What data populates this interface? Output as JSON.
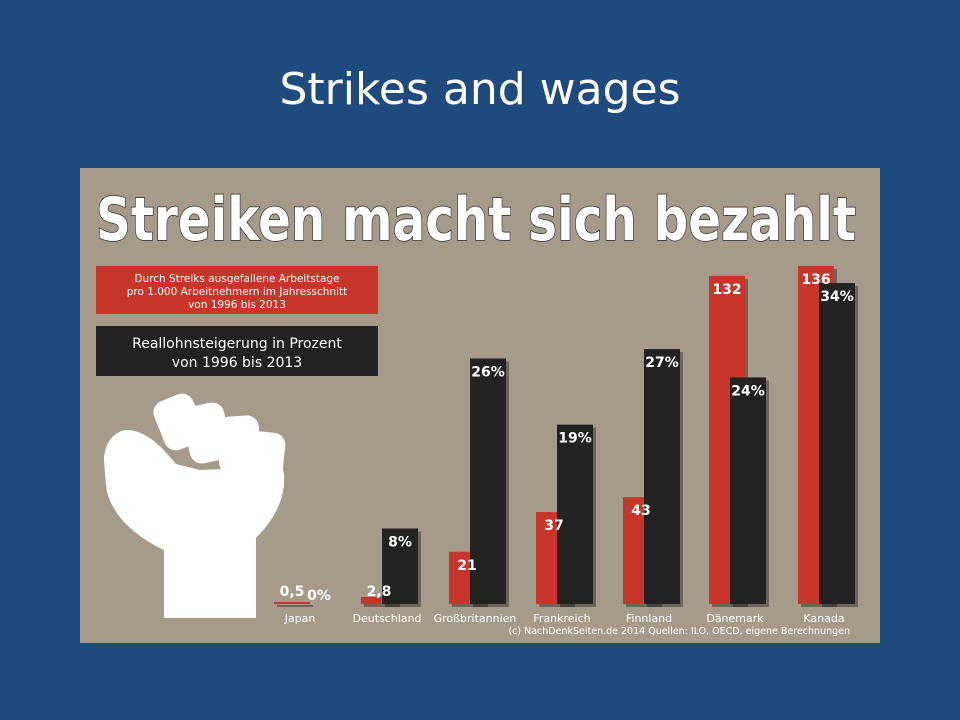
{
  "slide": {
    "title": "Strikes and wages"
  },
  "chart_data": {
    "type": "bar",
    "title": "Streiken macht sich bezahlt",
    "categories": [
      "Japan",
      "Deutschland",
      "Großbritannien",
      "Frankreich",
      "Finnland",
      "Dänemark",
      "Kanada"
    ],
    "series": [
      {
        "name": "Durch Streiks ausgefallene Arbeitstage pro 1.000 Arbeitnehmern im Jahresschnitt von 1996 bis 2013",
        "legend_lines": [
          "Durch Streiks ausgefallene Arbeitstage",
          "pro 1.000 Arbeitnehmern im Jahresschnitt",
          "von 1996 bis 2013"
        ],
        "values": [
          0.5,
          2.8,
          21,
          37,
          43,
          132,
          136
        ],
        "labels": [
          "0,5",
          "2,8",
          "21",
          "37",
          "43",
          "132",
          "136"
        ],
        "color": "#c8352a"
      },
      {
        "name": "Reallohnsteigerung in Prozent von 1996 bis 2013",
        "legend_lines": [
          "Reallohnsteigerung in Prozent",
          "von 1996 bis 2013"
        ],
        "values": [
          0,
          8,
          26,
          19,
          27,
          24,
          34
        ],
        "labels": [
          "0%",
          "8%",
          "26%",
          "19%",
          "27%",
          "24%",
          "34%"
        ],
        "color": "#222222"
      }
    ],
    "ylim_series1": [
      0,
      136
    ],
    "ylim_series2": [
      0,
      34
    ],
    "legend_position": "top-left",
    "grid": false,
    "source": "(c) NachDenkSeiten.de 2014 Quellen: ILO, OECD, eigene Berechnungen",
    "colors": {
      "background": "#a69b8b",
      "red": "#c8352a",
      "black": "#222222"
    }
  }
}
